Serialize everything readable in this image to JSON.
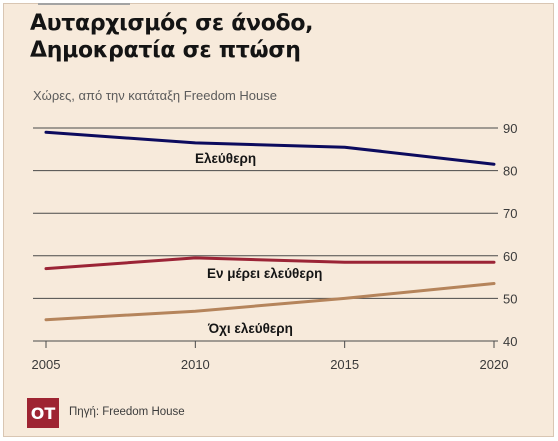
{
  "title_line1": "Αυταρχισμός σε άνοδο,",
  "title_line2": "Δημοκρατία σε πτώση",
  "subtitle": "Χώρες, από την κατάταξη Freedom House",
  "logo": "ΟΤ",
  "source": "Πηγή: Freedom House",
  "colors": {
    "background": "#f7eadb",
    "free": "#0c0b5e",
    "partly_free": "#9b2436",
    "not_free": "#b5845b",
    "grid": "#4a4a4a"
  },
  "chart_data": {
    "type": "line",
    "x": [
      2005,
      2010,
      2015,
      2020
    ],
    "x_ticks": [
      "2005",
      "2010",
      "2015",
      "2020"
    ],
    "y_ticks": [
      "90",
      "80",
      "70",
      "60",
      "50",
      "40"
    ],
    "ylim": [
      40,
      90
    ],
    "grid": true,
    "series": [
      {
        "name": "Ελεύθερη",
        "values": [
          89,
          86.5,
          85.5,
          81.5
        ]
      },
      {
        "name": "Εν μέρει ελεύθερη",
        "values": [
          57,
          59.5,
          58.5,
          58.5
        ]
      },
      {
        "name": "Όχι ελεύθερη",
        "values": [
          45,
          47,
          50,
          53.5
        ]
      }
    ]
  }
}
